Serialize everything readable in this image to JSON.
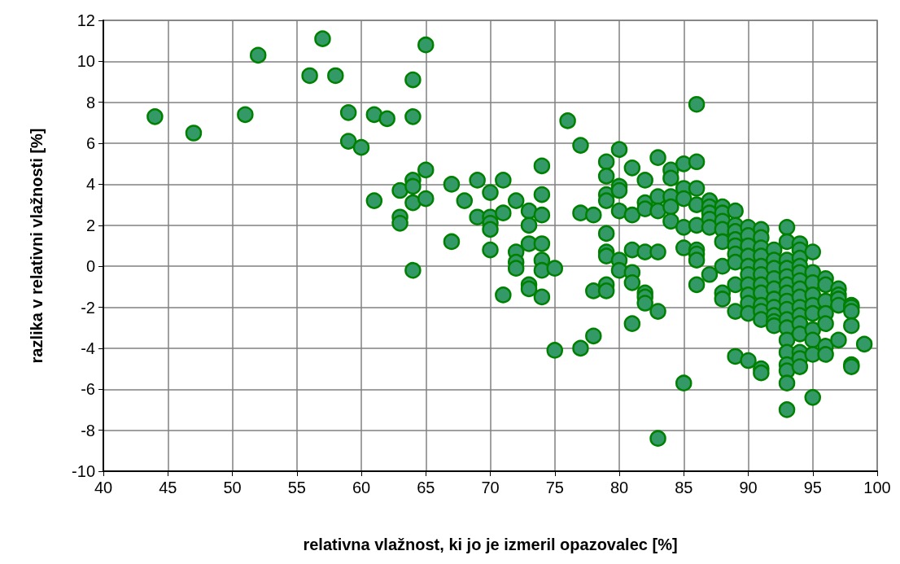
{
  "chart_data": {
    "type": "scatter",
    "xlabel": "relativna vlažnost, ki jo je izmeril opazovalec [%]",
    "ylabel": "razlika v relativni vlažnosti [%]",
    "xlim": [
      40,
      100
    ],
    "xticks": [
      40,
      45,
      50,
      55,
      60,
      65,
      70,
      75,
      80,
      85,
      90,
      95,
      100
    ],
    "ylim": [
      -10,
      12
    ],
    "yticks": [
      -10,
      -8,
      -6,
      -4,
      -2,
      0,
      2,
      4,
      6,
      8,
      10,
      12
    ],
    "grid": true,
    "marker": "circle",
    "series": [
      {
        "color": "#339966",
        "x": [
          44,
          47,
          51,
          52,
          56,
          57,
          58,
          59,
          59,
          60,
          61,
          61,
          62,
          63,
          63,
          63,
          64,
          64,
          64,
          64,
          64,
          64,
          65,
          65,
          65,
          67,
          67,
          68,
          69,
          69,
          70,
          70,
          70,
          70,
          70,
          71,
          71,
          71,
          72,
          72,
          72,
          72,
          73,
          73,
          73,
          73,
          73,
          74,
          74,
          74,
          74,
          74,
          74,
          74,
          75,
          75,
          76,
          77,
          77,
          77,
          78,
          78,
          78,
          79,
          79,
          79,
          79,
          79,
          79,
          79,
          79,
          79,
          80,
          80,
          80,
          80,
          80,
          80,
          81,
          81,
          81,
          81,
          81,
          81,
          82,
          82,
          82,
          82,
          82,
          82,
          82,
          83,
          83,
          83,
          83,
          83,
          83,
          84,
          84,
          84,
          84,
          84,
          85,
          85,
          85,
          85,
          85,
          85,
          86,
          86,
          86,
          86,
          86,
          86,
          86,
          86,
          86,
          87,
          87,
          87,
          87,
          87,
          87,
          88,
          88,
          88,
          88,
          88,
          88,
          88,
          88,
          89,
          89,
          89,
          89,
          89,
          89,
          89,
          89,
          89,
          89,
          90,
          90,
          90,
          90,
          90,
          90,
          90,
          90,
          90,
          90,
          90,
          91,
          91,
          91,
          91,
          91,
          91,
          91,
          91,
          91,
          91,
          91,
          91,
          91,
          92,
          92,
          92,
          92,
          92,
          92,
          92,
          92,
          92,
          92,
          93,
          93,
          93,
          93,
          93,
          93,
          93,
          93,
          93,
          93,
          93,
          93,
          93,
          93,
          93,
          93,
          93,
          94,
          94,
          94,
          94,
          94,
          94,
          94,
          94,
          94,
          94,
          94,
          94,
          94,
          94,
          94,
          95,
          95,
          95,
          95,
          95,
          95,
          95,
          95,
          95,
          95,
          96,
          96,
          96,
          96,
          96,
          96,
          96,
          97,
          97,
          97,
          97,
          97,
          98,
          98,
          98,
          98,
          98,
          98,
          99
        ],
        "values": [
          7.3,
          6.5,
          7.4,
          10.3,
          9.3,
          11.1,
          9.3,
          7.5,
          6.1,
          5.8,
          7.4,
          3.2,
          7.2,
          3.7,
          2.4,
          2.1,
          9.1,
          7.3,
          4.2,
          3.9,
          3.1,
          -0.2,
          10.8,
          4.7,
          3.3,
          4.0,
          1.2,
          3.2,
          4.2,
          2.4,
          3.6,
          2.4,
          2.1,
          1.8,
          0.8,
          4.2,
          2.6,
          -1.4,
          3.2,
          0.7,
          0.2,
          -0.1,
          2.7,
          2.0,
          1.1,
          -0.9,
          -1.1,
          4.9,
          3.5,
          2.5,
          1.1,
          0.3,
          -0.2,
          -1.5,
          -0.1,
          -4.1,
          7.1,
          5.9,
          2.6,
          -4.0,
          2.5,
          -1.2,
          -3.4,
          5.1,
          4.4,
          3.5,
          3.2,
          1.6,
          0.7,
          0.5,
          -0.9,
          -1.2,
          5.7,
          3.9,
          3.7,
          2.7,
          0.3,
          -0.2,
          4.8,
          2.5,
          0.8,
          -0.3,
          -0.8,
          -2.8,
          4.2,
          3.1,
          2.8,
          0.7,
          -1.3,
          -1.5,
          -1.8,
          5.3,
          3.4,
          2.7,
          0.7,
          -2.2,
          -8.4,
          4.7,
          4.3,
          3.4,
          2.9,
          2.2,
          5.0,
          3.8,
          3.3,
          1.9,
          0.9,
          -5.7,
          7.9,
          5.1,
          3.8,
          3.0,
          2.0,
          0.8,
          0.6,
          0.3,
          -0.9,
          3.2,
          2.9,
          2.6,
          2.3,
          1.9,
          -0.4,
          2.9,
          2.6,
          2.2,
          1.8,
          1.2,
          0.0,
          -1.3,
          -1.6,
          2.7,
          2.0,
          1.7,
          1.3,
          1.0,
          0.6,
          0.2,
          -0.9,
          -2.2,
          -4.4,
          1.9,
          1.5,
          1.0,
          0.5,
          0.0,
          -0.4,
          -0.9,
          -1.4,
          -1.8,
          -2.3,
          -4.6,
          1.8,
          1.4,
          0.9,
          0.5,
          0.0,
          -0.4,
          -0.9,
          -1.3,
          -1.9,
          -2.2,
          -2.6,
          -5.0,
          -5.2,
          0.8,
          0.3,
          -0.1,
          -0.6,
          -1.1,
          -1.6,
          -2.0,
          -2.4,
          -2.7,
          -2.9,
          1.9,
          1.2,
          0.3,
          -0.1,
          -0.5,
          -0.9,
          -1.3,
          -1.7,
          -2.1,
          -2.6,
          -3.0,
          -3.6,
          -4.2,
          -4.8,
          -5.1,
          -5.7,
          -7.0,
          1.1,
          0.8,
          0.4,
          0.0,
          -0.3,
          -0.7,
          -1.1,
          -1.5,
          -2.0,
          -2.4,
          -2.8,
          -3.3,
          -4.2,
          -4.5,
          -4.9,
          0.7,
          -0.3,
          -0.8,
          -1.4,
          -1.9,
          -2.3,
          -3.1,
          -3.6,
          -4.3,
          -6.4,
          -0.6,
          -0.9,
          -1.7,
          -2.3,
          -2.8,
          -3.9,
          -4.3,
          -1.1,
          -1.4,
          -1.6,
          -1.9,
          -3.6,
          -1.9,
          -2.0,
          -2.2,
          -2.9,
          -4.8,
          -4.9,
          -3.8
        ]
      }
    ]
  }
}
